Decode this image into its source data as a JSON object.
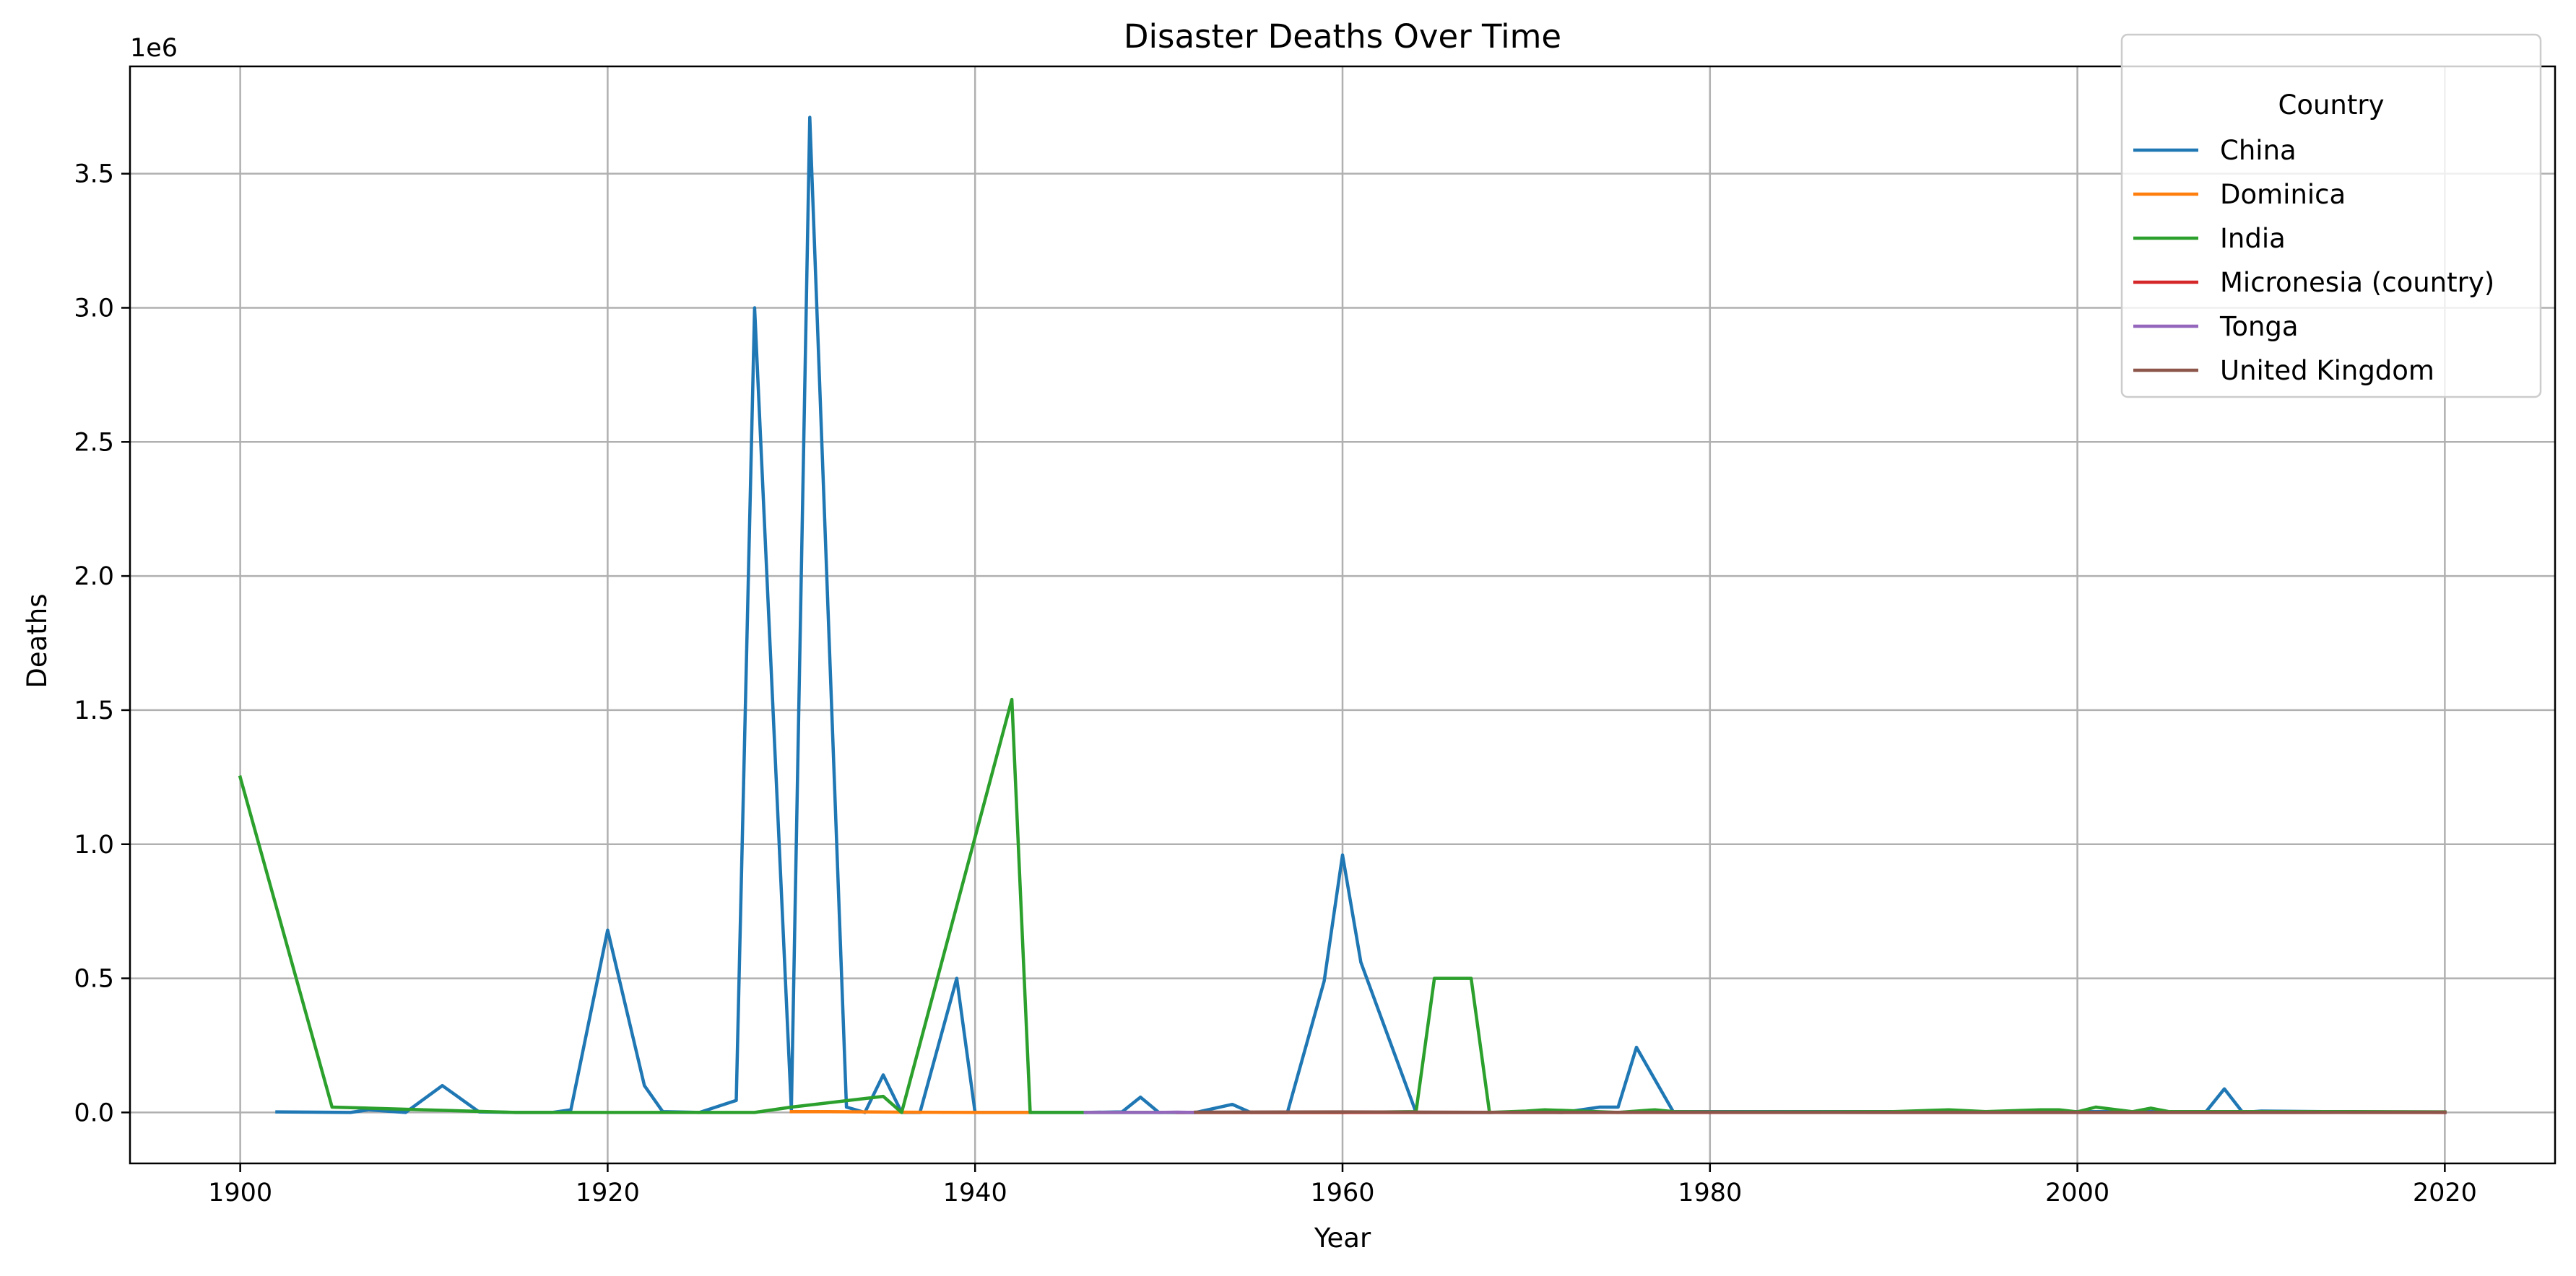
{
  "chart_data": {
    "type": "line",
    "title": "Disaster Deaths Over Time",
    "xlabel": "Year",
    "ylabel": "Deaths",
    "y_offset_label": "1e6",
    "xlim": [
      1894,
      2026
    ],
    "ylim": [
      -0.19,
      3.9
    ],
    "y_scale_factor": 1000000,
    "x_ticks": [
      1900,
      1920,
      1940,
      1960,
      1980,
      2000,
      2020
    ],
    "x_tick_labels": [
      "1900",
      "1920",
      "1940",
      "1960",
      "1980",
      "2000",
      "2020"
    ],
    "y_ticks": [
      0,
      0.5,
      1.0,
      1.5,
      2.0,
      2.5,
      3.0,
      3.5
    ],
    "y_tick_labels": [
      "0.0",
      "0.5",
      "1.0",
      "1.5",
      "2.0",
      "2.5",
      "3.0",
      "3.5"
    ],
    "grid": true,
    "legend": {
      "title": "Country",
      "position": "upper right"
    },
    "series": [
      {
        "name": "China",
        "color": "#1f77b4",
        "x": [
          1902,
          1906,
          1907,
          1909,
          1911,
          1913,
          1915,
          1917,
          1918,
          1920,
          1922,
          1923,
          1925,
          1927,
          1928,
          1930,
          1931,
          1933,
          1934,
          1935,
          1936,
          1937,
          1939,
          1940,
          1941,
          1943,
          1946,
          1948,
          1949,
          1950,
          1952,
          1954,
          1955,
          1957,
          1959,
          1960,
          1961,
          1964,
          1966,
          1968,
          1970,
          1972,
          1974,
          1975,
          1976,
          1978,
          1980,
          1985,
          1990,
          1995,
          2000,
          2005,
          2007,
          2008,
          2009,
          2010,
          2015,
          2020
        ],
        "y": [
          0.002,
          0.0,
          0.01,
          0.0,
          0.1,
          0.002,
          0.0,
          0.0,
          0.01,
          0.68,
          0.1,
          0.003,
          0.0,
          0.045,
          3.0,
          0.01,
          3.71,
          0.02,
          0.0,
          0.14,
          0.0,
          0.0,
          0.5,
          0.0,
          0.0,
          0.0,
          0.0,
          0.002,
          0.057,
          0.0,
          0.0,
          0.03,
          0.0,
          0.0,
          0.49,
          0.96,
          0.56,
          0.0,
          0.0,
          0.0,
          0.002,
          0.0,
          0.02,
          0.02,
          0.243,
          0.003,
          0.003,
          0.003,
          0.003,
          0.003,
          0.003,
          0.003,
          0.003,
          0.088,
          0.0,
          0.005,
          0.002,
          0.0
        ]
      },
      {
        "name": "Dominica",
        "color": "#ff7f0e",
        "x": [
          1930,
          1932,
          1936,
          1940,
          1943
        ],
        "y": [
          0.003,
          0.003,
          0.001,
          0.0,
          0.0
        ]
      },
      {
        "name": "India",
        "color": "#2ca02c",
        "x": [
          1900,
          1905,
          1910,
          1915,
          1920,
          1925,
          1928,
          1930,
          1935,
          1936,
          1942,
          1943,
          1945,
          1950,
          1955,
          1960,
          1964,
          1965,
          1967,
          1968,
          1970,
          1971,
          1975,
          1977,
          1978,
          1980,
          1985,
          1990,
          1993,
          1995,
          1998,
          1999,
          2000,
          2001,
          2003,
          2004,
          2005,
          2010,
          2015,
          2020
        ],
        "y": [
          1.25,
          0.02,
          0.01,
          0.0,
          0.0,
          0.0,
          0.0,
          0.02,
          0.06,
          0.0,
          1.54,
          0.0,
          0.0,
          0.0,
          0.0,
          0.0,
          0.003,
          0.5,
          0.5,
          0.0,
          0.005,
          0.01,
          0.0,
          0.01,
          0.003,
          0.002,
          0.002,
          0.003,
          0.01,
          0.003,
          0.01,
          0.01,
          0.002,
          0.02,
          0.003,
          0.016,
          0.003,
          0.003,
          0.003,
          0.002
        ]
      },
      {
        "name": "Micronesia (country)",
        "color": "#d62728",
        "x": [
          1951,
          1960,
          1970,
          1980,
          1990,
          2000,
          2010,
          2020
        ],
        "y": [
          0.0,
          0.0,
          0.0,
          0.0,
          0.0,
          0.0,
          0.0,
          0.0
        ]
      },
      {
        "name": "Tonga",
        "color": "#9467bd",
        "x": [
          1946,
          1948,
          1950,
          1951,
          1952
        ],
        "y": [
          0.0,
          0.0,
          0.0,
          0.001,
          0.0
        ]
      },
      {
        "name": "United Kingdom",
        "color": "#8c564b",
        "x": [
          1952,
          1960,
          1970,
          1980,
          1990,
          2000,
          2010,
          2020
        ],
        "y": [
          0.001,
          0.002,
          0.0,
          0.001,
          0.0,
          0.0,
          0.0,
          0.001
        ]
      }
    ]
  }
}
